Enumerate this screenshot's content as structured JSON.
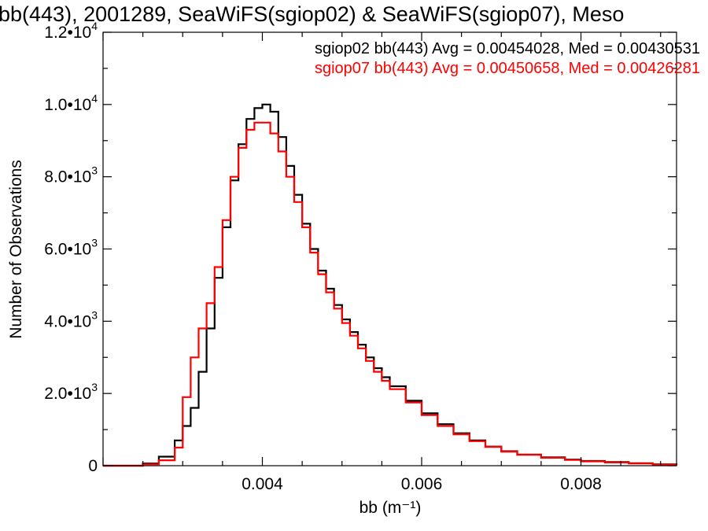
{
  "chart_data": {
    "type": "line",
    "title": "bb(443), 2001289, SeaWiFS(sgiop02) & SeaWiFS(sgiop07), Meso",
    "xlabel": "bb (m⁻¹)",
    "ylabel": "Number of Observations",
    "xlim": [
      0.002,
      0.0092
    ],
    "ylim": [
      0,
      12000
    ],
    "x_ticks": [
      {
        "value": 0.004,
        "label": "0.004"
      },
      {
        "value": 0.006,
        "label": "0.006"
      },
      {
        "value": 0.008,
        "label": "0.008"
      }
    ],
    "y_ticks": [
      {
        "value": 0,
        "mant": "0",
        "exp": ""
      },
      {
        "value": 2000,
        "mant": "2.0•10",
        "exp": "3"
      },
      {
        "value": 4000,
        "mant": "4.0•10",
        "exp": "3"
      },
      {
        "value": 6000,
        "mant": "6.0•10",
        "exp": "3"
      },
      {
        "value": 8000,
        "mant": "8.0•10",
        "exp": "3"
      },
      {
        "value": 10000,
        "mant": "1.0•10",
        "exp": "4"
      },
      {
        "value": 12000,
        "mant": "1.2•10",
        "exp": "4"
      }
    ],
    "grid": false,
    "legend_position": "top-right",
    "series": [
      {
        "name": "sgiop02",
        "legend": "sgiop02 bb(443) Avg = 0.00454028, Med = 0.00430531",
        "color": "#000000",
        "x": [
          0.002,
          0.0025,
          0.0027,
          0.0029,
          0.003,
          0.0031,
          0.0032,
          0.0033,
          0.0034,
          0.0035,
          0.0036,
          0.0037,
          0.0038,
          0.0039,
          0.004,
          0.0041,
          0.0042,
          0.0043,
          0.0044,
          0.0045,
          0.0046,
          0.0047,
          0.0048,
          0.0049,
          0.005,
          0.0051,
          0.0052,
          0.0053,
          0.0054,
          0.0055,
          0.0056,
          0.0058,
          0.006,
          0.0062,
          0.0064,
          0.0066,
          0.0068,
          0.007,
          0.0072,
          0.0075,
          0.0078,
          0.008,
          0.0083,
          0.0086,
          0.0089,
          0.0092
        ],
        "y": [
          0,
          60,
          250,
          700,
          1100,
          1600,
          2600,
          3800,
          5200,
          6600,
          7900,
          8900,
          9600,
          9900,
          10000,
          9800,
          9100,
          8300,
          7500,
          6700,
          6000,
          5400,
          4900,
          4450,
          4050,
          3700,
          3350,
          3000,
          2700,
          2450,
          2200,
          1800,
          1450,
          1150,
          900,
          700,
          530,
          400,
          310,
          230,
          170,
          130,
          100,
          70,
          40,
          20
        ]
      },
      {
        "name": "sgiop07",
        "legend": "sgiop07 bb(443) Avg = 0.00450658, Med = 0.00426281",
        "color": "#ff0000",
        "x": [
          0.002,
          0.0025,
          0.0027,
          0.0029,
          0.003,
          0.0031,
          0.0032,
          0.0033,
          0.0034,
          0.0035,
          0.0036,
          0.0037,
          0.0038,
          0.0039,
          0.004,
          0.0041,
          0.0042,
          0.0043,
          0.0044,
          0.0045,
          0.0046,
          0.0047,
          0.0048,
          0.0049,
          0.005,
          0.0051,
          0.0052,
          0.0053,
          0.0054,
          0.0055,
          0.0056,
          0.0058,
          0.006,
          0.0062,
          0.0064,
          0.0066,
          0.0068,
          0.007,
          0.0072,
          0.0075,
          0.0078,
          0.008,
          0.0083,
          0.0086,
          0.0089,
          0.0092
        ],
        "y": [
          0,
          40,
          150,
          500,
          1900,
          3000,
          3800,
          4500,
          5500,
          6800,
          8000,
          8800,
          9300,
          9500,
          9500,
          9200,
          8700,
          8000,
          7300,
          6600,
          5900,
          5300,
          4800,
          4350,
          3950,
          3600,
          3250,
          2900,
          2600,
          2350,
          2120,
          1750,
          1400,
          1100,
          870,
          680,
          520,
          390,
          300,
          220,
          160,
          120,
          90,
          60,
          35,
          15
        ]
      }
    ]
  }
}
